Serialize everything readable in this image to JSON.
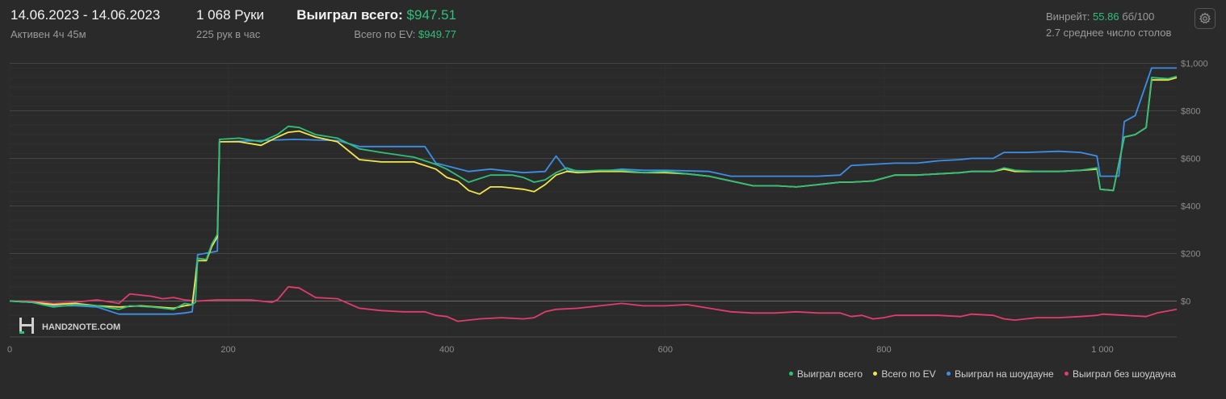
{
  "header": {
    "date_range": "14.06.2023 - 14.06.2023",
    "active": "Активен 4ч 45м",
    "hands": "1 068 Руки",
    "hands_per_hour": "225 рук в час",
    "won_total_label": "Выиграл всего:",
    "won_total_value": "$947.51",
    "ev_total_label": "Всего по EV:",
    "ev_total_value": "$949.77",
    "winrate_label": "Винрейт:",
    "winrate_value": "55.86",
    "winrate_unit": "бб/100",
    "avg_tables": "2.7 среднее число столов",
    "settings_icon": "gear-icon"
  },
  "watermark": "HAND2NOTE.COM",
  "colors": {
    "won_total": "#2fc07a",
    "ev": "#f2e74a",
    "showdown": "#3c8fe6",
    "non_showdown": "#e03c6f",
    "background": "#2a2a2a",
    "grid": "#3b3b3b"
  },
  "chart_data": {
    "type": "line",
    "xlim": [
      0,
      1068
    ],
    "ylim": [
      -150,
      1050
    ],
    "x_ticks": [
      "0",
      "200",
      "400",
      "600",
      "800",
      "1 000"
    ],
    "y_ticks": [
      "$1,000",
      "$800",
      "$600",
      "$400",
      "$200",
      "$0"
    ],
    "grid": true,
    "legend_position": "bottom-right",
    "series": [
      {
        "name": "Выиграл всего",
        "points": [
          [
            0,
            0
          ],
          [
            20,
            -5
          ],
          [
            40,
            -25
          ],
          [
            60,
            -15
          ],
          [
            80,
            -20
          ],
          [
            100,
            -35
          ],
          [
            110,
            -20
          ],
          [
            130,
            -25
          ],
          [
            150,
            -35
          ],
          [
            160,
            -10
          ],
          [
            167,
            -15
          ],
          [
            170,
            -5
          ],
          [
            172,
            180
          ],
          [
            180,
            175
          ],
          [
            185,
            240
          ],
          [
            190,
            280
          ],
          [
            192,
            680
          ],
          [
            210,
            685
          ],
          [
            230,
            670
          ],
          [
            245,
            700
          ],
          [
            255,
            735
          ],
          [
            265,
            730
          ],
          [
            280,
            700
          ],
          [
            300,
            685
          ],
          [
            320,
            640
          ],
          [
            340,
            625
          ],
          [
            370,
            605
          ],
          [
            390,
            575
          ],
          [
            400,
            555
          ],
          [
            420,
            500
          ],
          [
            440,
            530
          ],
          [
            460,
            530
          ],
          [
            470,
            520
          ],
          [
            480,
            500
          ],
          [
            490,
            510
          ],
          [
            500,
            540
          ],
          [
            510,
            560
          ],
          [
            520,
            545
          ],
          [
            540,
            550
          ],
          [
            560,
            550
          ],
          [
            580,
            540
          ],
          [
            600,
            545
          ],
          [
            620,
            535
          ],
          [
            640,
            525
          ],
          [
            660,
            505
          ],
          [
            680,
            485
          ],
          [
            700,
            485
          ],
          [
            720,
            480
          ],
          [
            740,
            490
          ],
          [
            760,
            500
          ],
          [
            770,
            500
          ],
          [
            790,
            505
          ],
          [
            810,
            530
          ],
          [
            830,
            530
          ],
          [
            850,
            535
          ],
          [
            870,
            540
          ],
          [
            880,
            545
          ],
          [
            900,
            545
          ],
          [
            910,
            560
          ],
          [
            920,
            550
          ],
          [
            940,
            545
          ],
          [
            960,
            545
          ],
          [
            980,
            550
          ],
          [
            995,
            560
          ],
          [
            998,
            470
          ],
          [
            1010,
            465
          ],
          [
            1020,
            690
          ],
          [
            1030,
            700
          ],
          [
            1040,
            730
          ],
          [
            1045,
            940
          ],
          [
            1060,
            935
          ],
          [
            1068,
            945
          ]
        ]
      },
      {
        "name": "Всего по EV",
        "points": [
          [
            0,
            0
          ],
          [
            20,
            -5
          ],
          [
            40,
            -15
          ],
          [
            60,
            -10
          ],
          [
            80,
            -20
          ],
          [
            100,
            -25
          ],
          [
            120,
            -20
          ],
          [
            150,
            -30
          ],
          [
            160,
            -20
          ],
          [
            167,
            -15
          ],
          [
            172,
            170
          ],
          [
            180,
            170
          ],
          [
            185,
            230
          ],
          [
            190,
            270
          ],
          [
            192,
            670
          ],
          [
            210,
            670
          ],
          [
            230,
            655
          ],
          [
            245,
            690
          ],
          [
            255,
            710
          ],
          [
            265,
            715
          ],
          [
            280,
            690
          ],
          [
            300,
            670
          ],
          [
            320,
            595
          ],
          [
            340,
            585
          ],
          [
            370,
            585
          ],
          [
            390,
            555
          ],
          [
            400,
            520
          ],
          [
            410,
            505
          ],
          [
            420,
            465
          ],
          [
            430,
            450
          ],
          [
            440,
            480
          ],
          [
            450,
            480
          ],
          [
            470,
            470
          ],
          [
            480,
            460
          ],
          [
            490,
            490
          ],
          [
            500,
            530
          ],
          [
            510,
            545
          ],
          [
            520,
            540
          ],
          [
            540,
            545
          ],
          [
            560,
            545
          ],
          [
            580,
            540
          ],
          [
            600,
            540
          ],
          [
            620,
            535
          ],
          [
            640,
            525
          ],
          [
            660,
            505
          ],
          [
            680,
            485
          ],
          [
            700,
            485
          ],
          [
            720,
            480
          ],
          [
            740,
            490
          ],
          [
            760,
            500
          ],
          [
            770,
            500
          ],
          [
            790,
            505
          ],
          [
            810,
            530
          ],
          [
            830,
            530
          ],
          [
            850,
            535
          ],
          [
            870,
            540
          ],
          [
            880,
            545
          ],
          [
            900,
            545
          ],
          [
            910,
            555
          ],
          [
            920,
            545
          ],
          [
            940,
            545
          ],
          [
            960,
            545
          ],
          [
            980,
            550
          ],
          [
            995,
            555
          ],
          [
            998,
            470
          ],
          [
            1010,
            465
          ],
          [
            1020,
            690
          ],
          [
            1030,
            700
          ],
          [
            1040,
            730
          ],
          [
            1045,
            930
          ],
          [
            1060,
            930
          ],
          [
            1068,
            940
          ]
        ]
      },
      {
        "name": "Выиграл на шоудауне",
        "points": [
          [
            0,
            0
          ],
          [
            20,
            -5
          ],
          [
            40,
            -20
          ],
          [
            60,
            -20
          ],
          [
            80,
            -25
          ],
          [
            100,
            -55
          ],
          [
            150,
            -55
          ],
          [
            160,
            -50
          ],
          [
            167,
            -45
          ],
          [
            172,
            195
          ],
          [
            190,
            210
          ],
          [
            192,
            670
          ],
          [
            230,
            675
          ],
          [
            260,
            680
          ],
          [
            300,
            675
          ],
          [
            320,
            650
          ],
          [
            380,
            650
          ],
          [
            390,
            580
          ],
          [
            420,
            545
          ],
          [
            440,
            555
          ],
          [
            470,
            540
          ],
          [
            490,
            545
          ],
          [
            500,
            610
          ],
          [
            510,
            550
          ],
          [
            540,
            545
          ],
          [
            560,
            555
          ],
          [
            580,
            550
          ],
          [
            600,
            550
          ],
          [
            640,
            545
          ],
          [
            660,
            525
          ],
          [
            700,
            525
          ],
          [
            740,
            525
          ],
          [
            760,
            530
          ],
          [
            770,
            570
          ],
          [
            790,
            575
          ],
          [
            810,
            580
          ],
          [
            830,
            580
          ],
          [
            850,
            590
          ],
          [
            870,
            595
          ],
          [
            880,
            600
          ],
          [
            900,
            600
          ],
          [
            910,
            625
          ],
          [
            930,
            625
          ],
          [
            960,
            630
          ],
          [
            980,
            625
          ],
          [
            995,
            610
          ],
          [
            998,
            525
          ],
          [
            1015,
            525
          ],
          [
            1020,
            755
          ],
          [
            1030,
            780
          ],
          [
            1045,
            980
          ],
          [
            1068,
            980
          ]
        ]
      },
      {
        "name": "Выиграл без шоудауна",
        "points": [
          [
            0,
            0
          ],
          [
            20,
            0
          ],
          [
            40,
            -10
          ],
          [
            60,
            -5
          ],
          [
            80,
            5
          ],
          [
            100,
            -10
          ],
          [
            110,
            30
          ],
          [
            130,
            20
          ],
          [
            140,
            10
          ],
          [
            150,
            15
          ],
          [
            160,
            5
          ],
          [
            172,
            0
          ],
          [
            190,
            5
          ],
          [
            220,
            5
          ],
          [
            240,
            -5
          ],
          [
            245,
            5
          ],
          [
            255,
            60
          ],
          [
            265,
            55
          ],
          [
            280,
            15
          ],
          [
            300,
            10
          ],
          [
            320,
            -30
          ],
          [
            340,
            -40
          ],
          [
            360,
            -45
          ],
          [
            380,
            -45
          ],
          [
            390,
            -60
          ],
          [
            400,
            -65
          ],
          [
            410,
            -85
          ],
          [
            430,
            -75
          ],
          [
            450,
            -70
          ],
          [
            470,
            -75
          ],
          [
            480,
            -70
          ],
          [
            490,
            -45
          ],
          [
            500,
            -35
          ],
          [
            520,
            -30
          ],
          [
            540,
            -20
          ],
          [
            560,
            -10
          ],
          [
            580,
            -20
          ],
          [
            600,
            -20
          ],
          [
            620,
            -15
          ],
          [
            640,
            -30
          ],
          [
            660,
            -45
          ],
          [
            680,
            -50
          ],
          [
            700,
            -50
          ],
          [
            720,
            -45
          ],
          [
            740,
            -50
          ],
          [
            760,
            -50
          ],
          [
            770,
            -65
          ],
          [
            780,
            -60
          ],
          [
            790,
            -75
          ],
          [
            800,
            -70
          ],
          [
            810,
            -60
          ],
          [
            830,
            -60
          ],
          [
            850,
            -60
          ],
          [
            870,
            -65
          ],
          [
            880,
            -55
          ],
          [
            900,
            -60
          ],
          [
            910,
            -75
          ],
          [
            920,
            -80
          ],
          [
            940,
            -70
          ],
          [
            960,
            -70
          ],
          [
            980,
            -65
          ],
          [
            995,
            -60
          ],
          [
            1000,
            -55
          ],
          [
            1020,
            -60
          ],
          [
            1040,
            -65
          ],
          [
            1050,
            -50
          ],
          [
            1068,
            -35
          ]
        ]
      }
    ]
  }
}
